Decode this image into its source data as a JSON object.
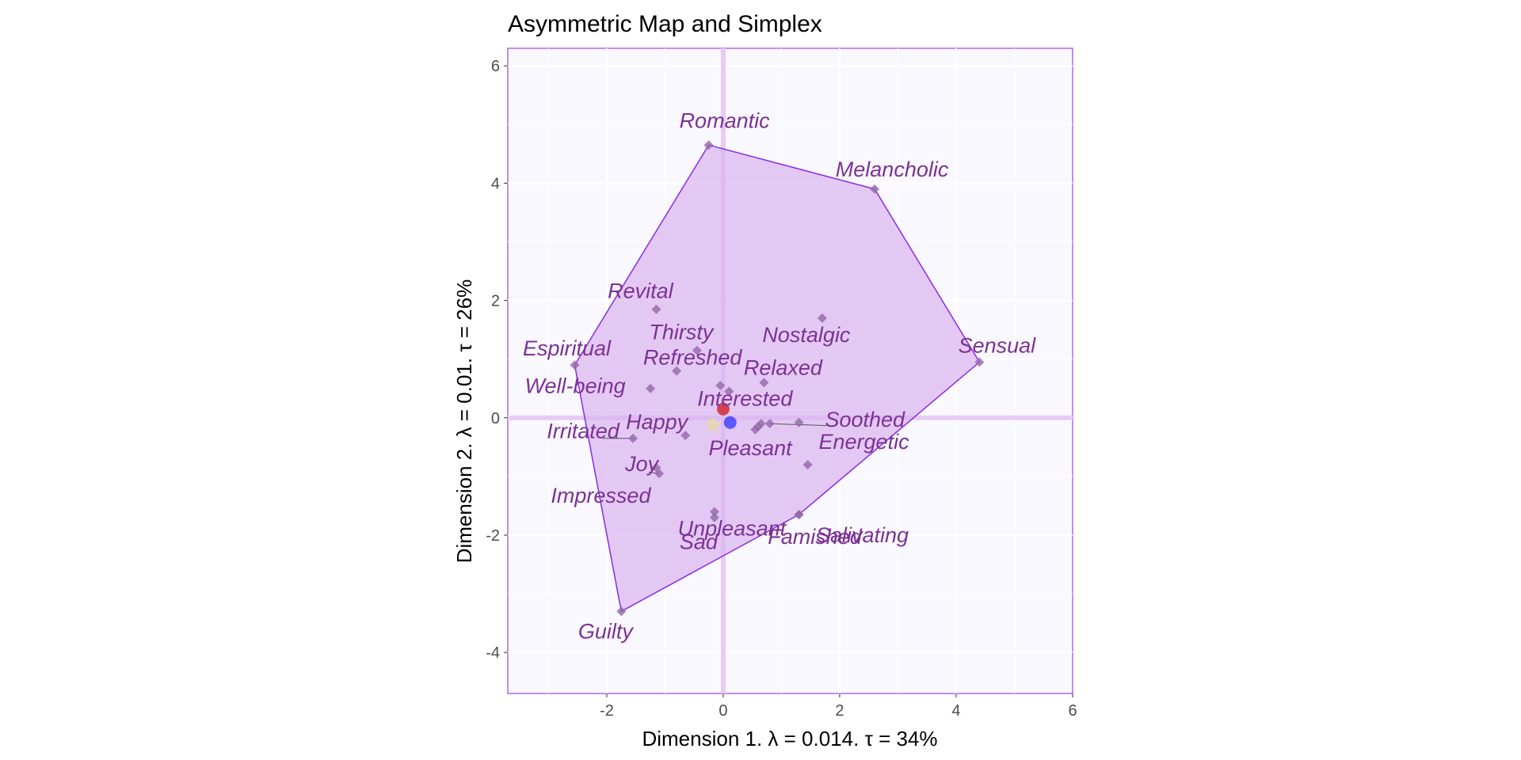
{
  "chart_data": {
    "type": "scatter",
    "title": "Asymmetric Map and Simplex",
    "xlabel": "Dimension 1.   λ = 0.014.  τ = 34%",
    "ylabel": "Dimension 2.   λ = 0.01.  τ = 26%",
    "xlim": [
      -3.7,
      6.0
    ],
    "ylim": [
      -4.7,
      6.3
    ],
    "xticks": [
      -2,
      0,
      2,
      4,
      6
    ],
    "yticks": [
      -4,
      -2,
      0,
      2,
      4,
      6
    ],
    "xtick_labels": [
      "-2",
      "0",
      "2",
      "4",
      "6"
    ],
    "ytick_labels": [
      "-4",
      "-2",
      "0",
      "2",
      "4",
      "6"
    ],
    "grid": true,
    "colors": {
      "panel": "#faf8ff",
      "grid": "#ffffff",
      "hull_fill": "#d9b3f0",
      "hull_stroke": "#8a2be2",
      "marker": "#9467a8",
      "label": "#7b3294",
      "origin_lines": "#e6ccf5"
    },
    "row_points": [
      {
        "label": "Romantic",
        "x": -0.25,
        "y": 4.65
      },
      {
        "label": "Melancholic",
        "x": 2.6,
        "y": 3.9
      },
      {
        "label": "Sensual",
        "x": 4.4,
        "y": 0.95
      },
      {
        "label": "Guilty",
        "x": -1.75,
        "y": -3.3
      },
      {
        "label": "Espiritual",
        "x": -2.55,
        "y": 0.9
      },
      {
        "label": "Revital",
        "x": -1.15,
        "y": 1.85
      },
      {
        "label": "Thirsty",
        "x": -0.45,
        "y": 1.15
      },
      {
        "label": "Nostalgic",
        "x": 1.7,
        "y": 1.7
      },
      {
        "label": "Refreshed",
        "x": -0.8,
        "y": 0.8
      },
      {
        "label": "Relaxed",
        "x": 0.7,
        "y": 0.6
      },
      {
        "label": "Well-being",
        "x": -1.25,
        "y": 0.5
      },
      {
        "label": "Interested",
        "x": 0.1,
        "y": 0.45
      },
      {
        "label": "Soothed",
        "x": 0.8,
        "y": -0.1
      },
      {
        "label": "Happy",
        "x": -0.65,
        "y": -0.3
      },
      {
        "label": "Irritated",
        "x": -1.55,
        "y": -0.35
      },
      {
        "label": "Pleasant",
        "x": 0.6,
        "y": -0.15
      },
      {
        "label": "Energetic",
        "x": 1.45,
        "y": -0.8
      },
      {
        "label": "Joy",
        "x": -1.1,
        "y": -0.95
      },
      {
        "label": "Unpleasant",
        "x": -0.15,
        "y": -1.6
      },
      {
        "label": "Salivating",
        "x": 1.3,
        "y": -1.65
      },
      {
        "label": "Impressed",
        "x": -1.15,
        "y": -0.85
      },
      {
        "label": "Sad",
        "x": -0.15,
        "y": -1.7
      },
      {
        "label": "Famished",
        "x": 1.3,
        "y": -1.65
      }
    ],
    "extra_markers": [
      {
        "x": -0.05,
        "y": 0.55
      },
      {
        "x": 0.65,
        "y": -0.1
      },
      {
        "x": 1.3,
        "y": -0.08
      },
      {
        "x": 0.55,
        "y": -0.2
      }
    ],
    "column_points": [
      {
        "x": 0.0,
        "y": 0.15,
        "color": "#cc1a1a"
      },
      {
        "x": 0.12,
        "y": -0.08,
        "color": "#3333ff"
      },
      {
        "x": -0.18,
        "y": -0.12,
        "color": "#e8d9a8"
      }
    ],
    "hull": [
      {
        "x": -0.25,
        "y": 4.65
      },
      {
        "x": 2.6,
        "y": 3.9
      },
      {
        "x": 4.4,
        "y": 0.95
      },
      {
        "x": 1.3,
        "y": -1.65
      },
      {
        "x": -1.75,
        "y": -3.3
      },
      {
        "x": -2.55,
        "y": 0.9
      }
    ]
  }
}
